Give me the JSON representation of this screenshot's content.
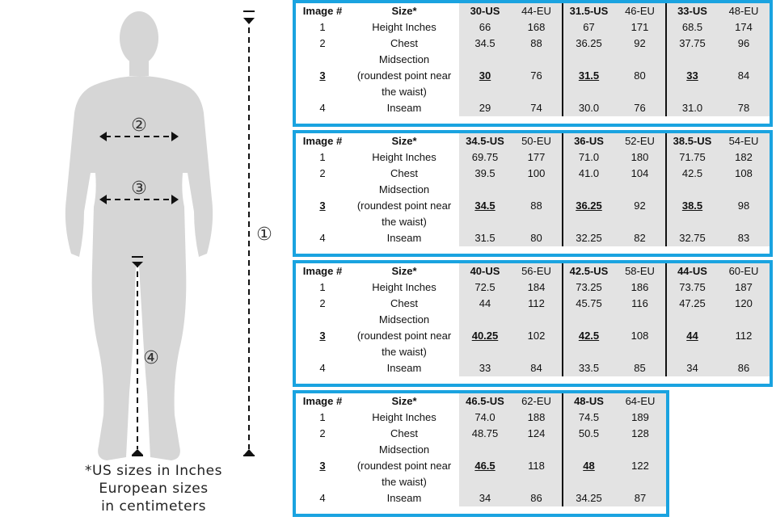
{
  "figure": {
    "markers": [
      "①",
      "②",
      "③",
      "④"
    ]
  },
  "footnote": {
    "line1": "*US sizes in Inches",
    "line2": "European sizes",
    "line3": "in centimeters"
  },
  "headers": {
    "image": "Image #",
    "size": "Size*"
  },
  "row_labels": {
    "r1": "Height Inches",
    "r2": "Chest",
    "r3a": "Midsection",
    "r3b": "(roundest point near",
    "r3c": "the waist)",
    "r4": "Inseam"
  },
  "row_numbers": [
    "1",
    "2",
    "3",
    "4"
  ],
  "blocks": [
    {
      "sizes": [
        {
          "us": "30-US",
          "eu": "44-EU",
          "height_in": "66",
          "height_cm": "168",
          "chest_in": "34.5",
          "chest_cm": "88",
          "mid_in": "30",
          "mid_cm": "76",
          "inseam_in": "29",
          "inseam_cm": "74"
        },
        {
          "us": "31.5-US",
          "eu": "46-EU",
          "height_in": "67",
          "height_cm": "171",
          "chest_in": "36.25",
          "chest_cm": "92",
          "mid_in": "31.5",
          "mid_cm": "80",
          "inseam_in": "30.0",
          "inseam_cm": "76"
        },
        {
          "us": "33-US",
          "eu": "48-EU",
          "height_in": "68.5",
          "height_cm": "174",
          "chest_in": "37.75",
          "chest_cm": "96",
          "mid_in": "33",
          "mid_cm": "84",
          "inseam_in": "31.0",
          "inseam_cm": "78"
        }
      ]
    },
    {
      "sizes": [
        {
          "us": "34.5-US",
          "eu": "50-EU",
          "height_in": "69.75",
          "height_cm": "177",
          "chest_in": "39.5",
          "chest_cm": "100",
          "mid_in": "34.5",
          "mid_cm": "88",
          "inseam_in": "31.5",
          "inseam_cm": "80"
        },
        {
          "us": "36-US",
          "eu": "52-EU",
          "height_in": "71.0",
          "height_cm": "180",
          "chest_in": "41.0",
          "chest_cm": "104",
          "mid_in": "36.25",
          "mid_cm": "92",
          "inseam_in": "32.25",
          "inseam_cm": "82"
        },
        {
          "us": "38.5-US",
          "eu": "54-EU",
          "height_in": "71.75",
          "height_cm": "182",
          "chest_in": "42.5",
          "chest_cm": "108",
          "mid_in": "38.5",
          "mid_cm": "98",
          "inseam_in": "32.75",
          "inseam_cm": "83"
        }
      ]
    },
    {
      "sizes": [
        {
          "us": "40-US",
          "eu": "56-EU",
          "height_in": "72.5",
          "height_cm": "184",
          "chest_in": "44",
          "chest_cm": "112",
          "mid_in": "40.25",
          "mid_cm": "102",
          "inseam_in": "33",
          "inseam_cm": "84"
        },
        {
          "us": "42.5-US",
          "eu": "58-EU",
          "height_in": "73.25",
          "height_cm": "186",
          "chest_in": "45.75",
          "chest_cm": "116",
          "mid_in": "42.5",
          "mid_cm": "108",
          "inseam_in": "33.5",
          "inseam_cm": "85"
        },
        {
          "us": "44-US",
          "eu": "60-EU",
          "height_in": "73.75",
          "height_cm": "187",
          "chest_in": "47.25",
          "chest_cm": "120",
          "mid_in": "44",
          "mid_cm": "112",
          "inseam_in": "34",
          "inseam_cm": "86"
        }
      ]
    },
    {
      "sizes": [
        {
          "us": "46.5-US",
          "eu": "62-EU",
          "height_in": "74.0",
          "height_cm": "188",
          "chest_in": "48.75",
          "chest_cm": "124",
          "mid_in": "46.5",
          "mid_cm": "118",
          "inseam_in": "34",
          "inseam_cm": "86"
        },
        {
          "us": "48-US",
          "eu": "64-EU",
          "height_in": "74.5",
          "height_cm": "189",
          "chest_in": "50.5",
          "chest_cm": "128",
          "mid_in": "48",
          "mid_cm": "122",
          "inseam_in": "34.25",
          "inseam_cm": "87"
        }
      ]
    }
  ],
  "colors": {
    "frame": "#1aa3e0",
    "shade": "#e3e3e3",
    "silhouette": "#d6d6d6"
  }
}
